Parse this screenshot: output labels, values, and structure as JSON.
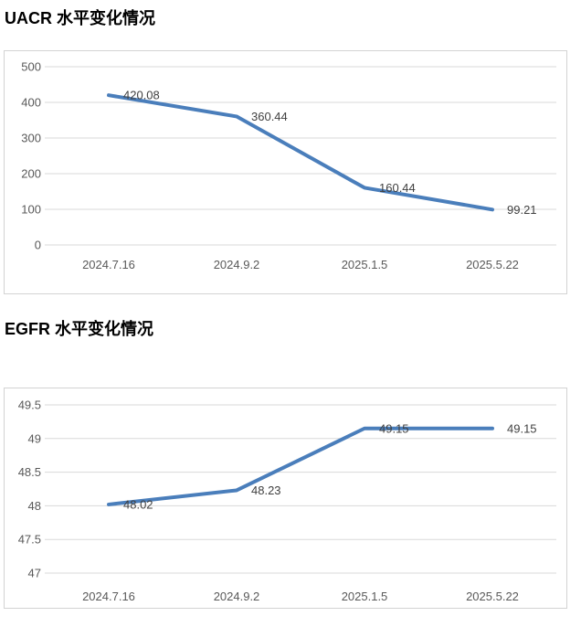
{
  "charts": [
    {
      "title": "UACR 水平变化情况"
    },
    {
      "title": "EGFR 水平变化情况"
    }
  ],
  "chart_data": [
    {
      "type": "line",
      "title": "UACR 水平变化情况",
      "categories": [
        "2024.7.16",
        "2024.9.2",
        "2025.1.5",
        "2025.5.22"
      ],
      "values": [
        420.08,
        360.44,
        160.44,
        99.21
      ],
      "data_labels": [
        "420.08",
        "360.44",
        "160.44",
        "99.21"
      ],
      "xlabel": "",
      "ylabel": "",
      "ylim": [
        0,
        500
      ],
      "yticks": [
        0,
        100,
        200,
        300,
        400,
        500
      ],
      "grid": true,
      "legend": "none",
      "line_color": "#4A7EBB",
      "grid_color": "#D9D9D9",
      "axis_text_color": "#595959",
      "data_label_color": "#404040"
    },
    {
      "type": "line",
      "title": "EGFR 水平变化情况",
      "categories": [
        "2024.7.16",
        "2024.9.2",
        "2025.1.5",
        "2025.5.22"
      ],
      "values": [
        48.02,
        48.23,
        49.15,
        49.15
      ],
      "data_labels": [
        "48.02",
        "48.23",
        "49.15",
        "49.15"
      ],
      "xlabel": "",
      "ylabel": "",
      "ylim": [
        47,
        49.5
      ],
      "yticks": [
        47,
        47.5,
        48,
        48.5,
        49,
        49.5
      ],
      "grid": true,
      "legend": "none",
      "line_color": "#4A7EBB",
      "grid_color": "#D9D9D9",
      "axis_text_color": "#595959",
      "data_label_color": "#404040"
    }
  ]
}
